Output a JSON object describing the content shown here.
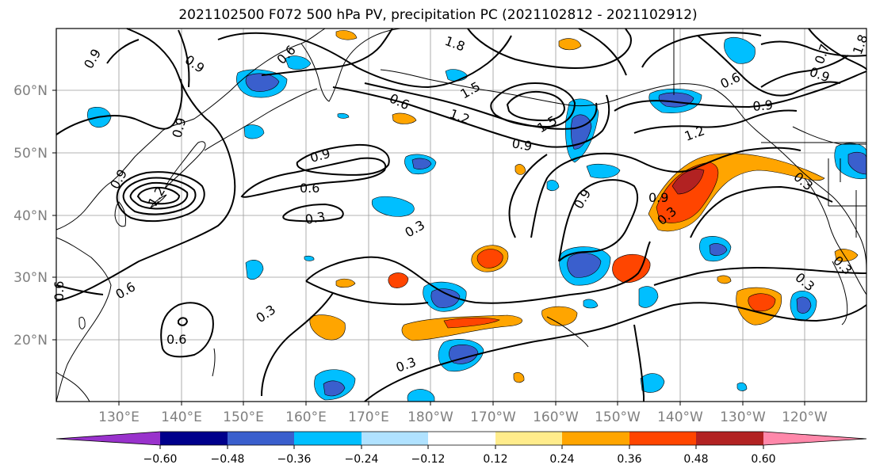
{
  "title": "2021102500 F072 500 hPa PV, precipitation PC (2021102812 - 2021102912)",
  "map": {
    "lat_labels": [
      "60°N",
      "50°N",
      "40°N",
      "30°N",
      "20°N"
    ],
    "lon_labels": [
      "130°E",
      "140°E",
      "150°E",
      "160°E",
      "170°E",
      "180°W",
      "170°W",
      "160°W",
      "150°W",
      "140°W",
      "130°W",
      "120°W"
    ],
    "contour_labels": [
      "0.9",
      "0.9",
      "0.6",
      "1.8",
      "1.5",
      "0.7",
      "0.9",
      "0.6",
      "0.9",
      "0.6",
      "0.9",
      "1.2",
      "1.5",
      "0.9",
      "0.9",
      "1.2",
      "1.2",
      "0.9",
      "0.9",
      "0.6",
      "0.3",
      "0.3",
      "0.3",
      "0.9",
      "0.3",
      "0.3",
      "0.6",
      "0.6",
      "0.3",
      "0.6",
      "0.3",
      "0.3",
      "1.8"
    ]
  },
  "colorbar": {
    "colors": [
      "#9932cc",
      "#00008b",
      "#3a5fcd",
      "#00bfff",
      "#b0e2ff",
      "#ffffff",
      "#ffec8b",
      "#ffa500",
      "#ff4500",
      "#b22222",
      "#ff88aa"
    ],
    "tick_labels": [
      "−0.60",
      "−0.48",
      "−0.36",
      "−0.24",
      "−0.12",
      "0.12",
      "0.24",
      "0.36",
      "0.48",
      "0.60"
    ]
  }
}
